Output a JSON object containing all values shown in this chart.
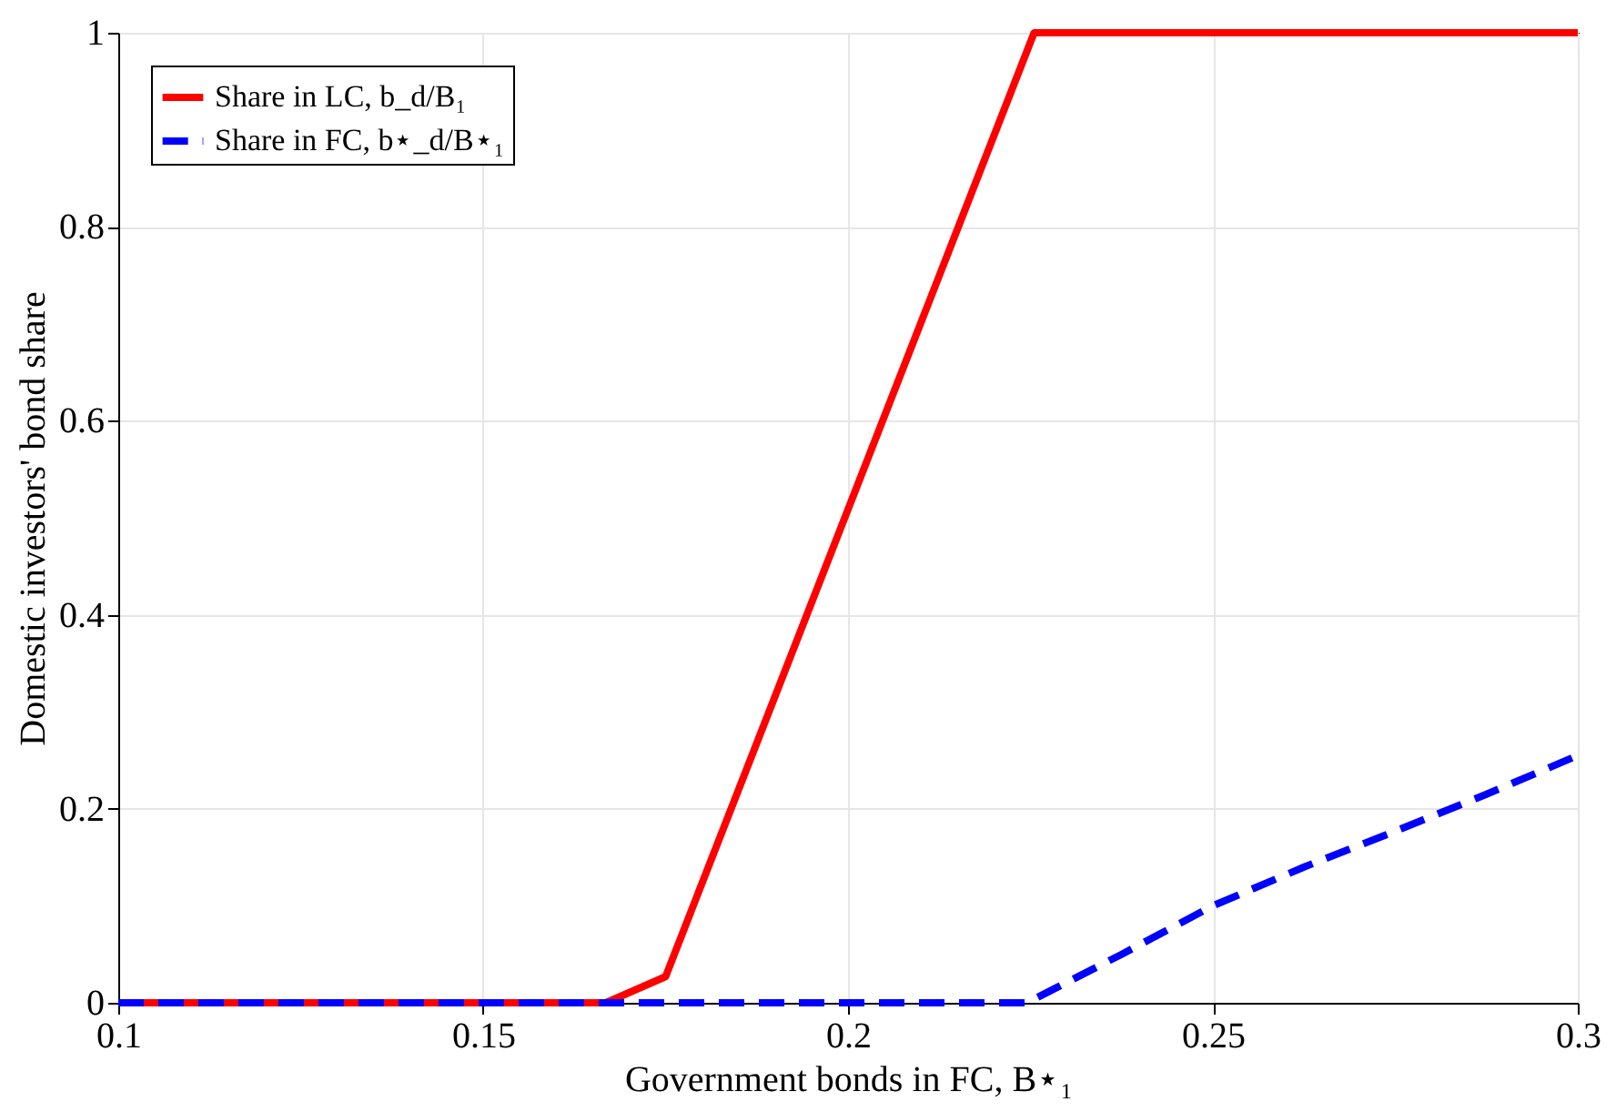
{
  "chart_data": {
    "type": "line",
    "xlabel": "Government bonds in FC, B⋆₁",
    "ylabel": "Domestic investors' bond share",
    "xlim": [
      0.1,
      0.3
    ],
    "xticks": [
      0.1,
      0.15,
      0.2,
      0.25,
      0.3
    ],
    "ylim": [
      0,
      1
    ],
    "yticks": [
      0,
      0.2,
      0.4,
      0.6,
      0.8,
      1
    ],
    "grid": true,
    "legend": "top left",
    "marker": "none",
    "series": [
      {
        "name": "Share in LC, b_d/B₁",
        "color": "#ff0000",
        "line_style": "solid",
        "x": [
          0.1,
          0.1668,
          0.175,
          0.2255,
          0.3
        ],
        "values": [
          0,
          0,
          0.027,
          1,
          1
        ]
      },
      {
        "name": "Share in FC, b⋆_d/B⋆₁",
        "color": "#0000ff",
        "line_style": "dashed",
        "x": [
          0.1,
          0.2245,
          0.2375,
          0.25,
          0.2625,
          0.275,
          0.2875,
          0.3
        ],
        "values": [
          0,
          0,
          0.05,
          0.1,
          0.14,
          0.177,
          0.215,
          0.255
        ]
      }
    ]
  }
}
